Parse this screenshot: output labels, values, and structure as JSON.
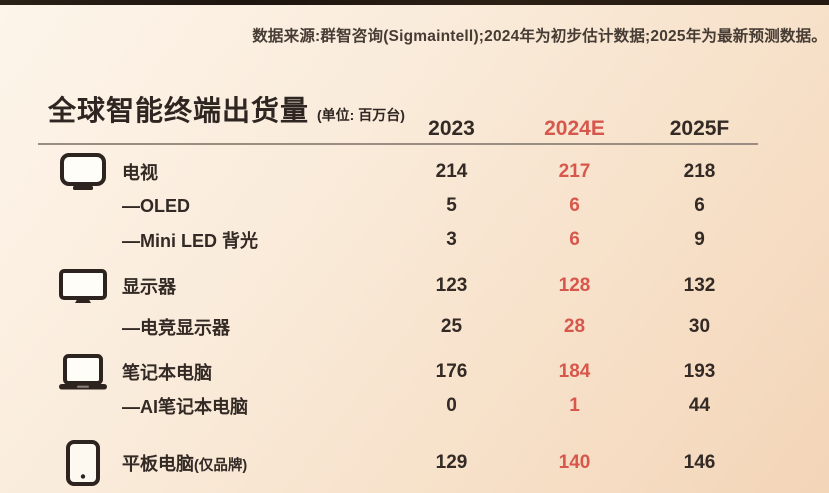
{
  "source_note": "数据来源:群智咨询(Sigmaintell);2024年为初步估计数据;2025年为最新预测数据。",
  "table": {
    "title": "全球智能终端出货量",
    "unit": "(单位: 百万台)",
    "columns": [
      "2023",
      "2024E",
      "2025F"
    ],
    "highlight_column": "2024E",
    "rows": [
      {
        "icon": "tv-icon",
        "label": "电视",
        "label_suffix": "",
        "values": [
          "214",
          "217",
          "218"
        ],
        "section_start": true
      },
      {
        "icon": "",
        "label": "—OLED",
        "label_suffix": "",
        "values": [
          "5",
          "6",
          "6"
        ],
        "section_start": false
      },
      {
        "icon": "",
        "label": "—Mini LED 背光",
        "label_suffix": "",
        "values": [
          "3",
          "6",
          "9"
        ],
        "section_start": false
      },
      {
        "icon": "monitor-icon",
        "label": "显示器",
        "label_suffix": "",
        "values": [
          "123",
          "128",
          "132"
        ],
        "section_start": true
      },
      {
        "icon": "",
        "label": "—电竞显示器",
        "label_suffix": "",
        "values": [
          "25",
          "28",
          "30"
        ],
        "section_start": false
      },
      {
        "icon": "laptop-icon",
        "label": "笔记本电脑",
        "label_suffix": "",
        "values": [
          "176",
          "184",
          "193"
        ],
        "section_start": true
      },
      {
        "icon": "",
        "label": "—AI笔记本电脑",
        "label_suffix": "",
        "values": [
          "0",
          "1",
          "44"
        ],
        "section_start": false
      },
      {
        "icon": "tablet-icon",
        "label": "平板电脑",
        "label_suffix": "(仅品牌)",
        "values": [
          "129",
          "140",
          "146"
        ],
        "section_start": true
      }
    ]
  },
  "colors": {
    "accent_red": "#d8574c",
    "text_dark": "#332a25",
    "divider": "#9a8e83",
    "bg_top_left": "#fdf5ea",
    "bg_bottom_right": "#f3d5b8",
    "top_edge": "#241a11"
  },
  "chart_data": {
    "type": "table",
    "title": "全球智能终端出货量",
    "unit": "百万台",
    "columns": [
      "2023",
      "2024E",
      "2025F"
    ],
    "rows": [
      {
        "category": "电视",
        "values": [
          214,
          217,
          218
        ]
      },
      {
        "category": "—OLED",
        "values": [
          5,
          6,
          6
        ]
      },
      {
        "category": "—Mini LED 背光",
        "values": [
          3,
          6,
          9
        ]
      },
      {
        "category": "显示器",
        "values": [
          123,
          128,
          132
        ]
      },
      {
        "category": "—电竞显示器",
        "values": [
          25,
          28,
          30
        ]
      },
      {
        "category": "笔记本电脑",
        "values": [
          176,
          184,
          193
        ]
      },
      {
        "category": "—AI笔记本电脑",
        "values": [
          0,
          1,
          44
        ]
      },
      {
        "category": "平板电脑(仅品牌)",
        "values": [
          129,
          140,
          146
        ]
      }
    ],
    "highlight_column": "2024E",
    "source": "群智咨询(Sigmaintell);2024年为初步估计数据;2025年为最新预测数据"
  }
}
